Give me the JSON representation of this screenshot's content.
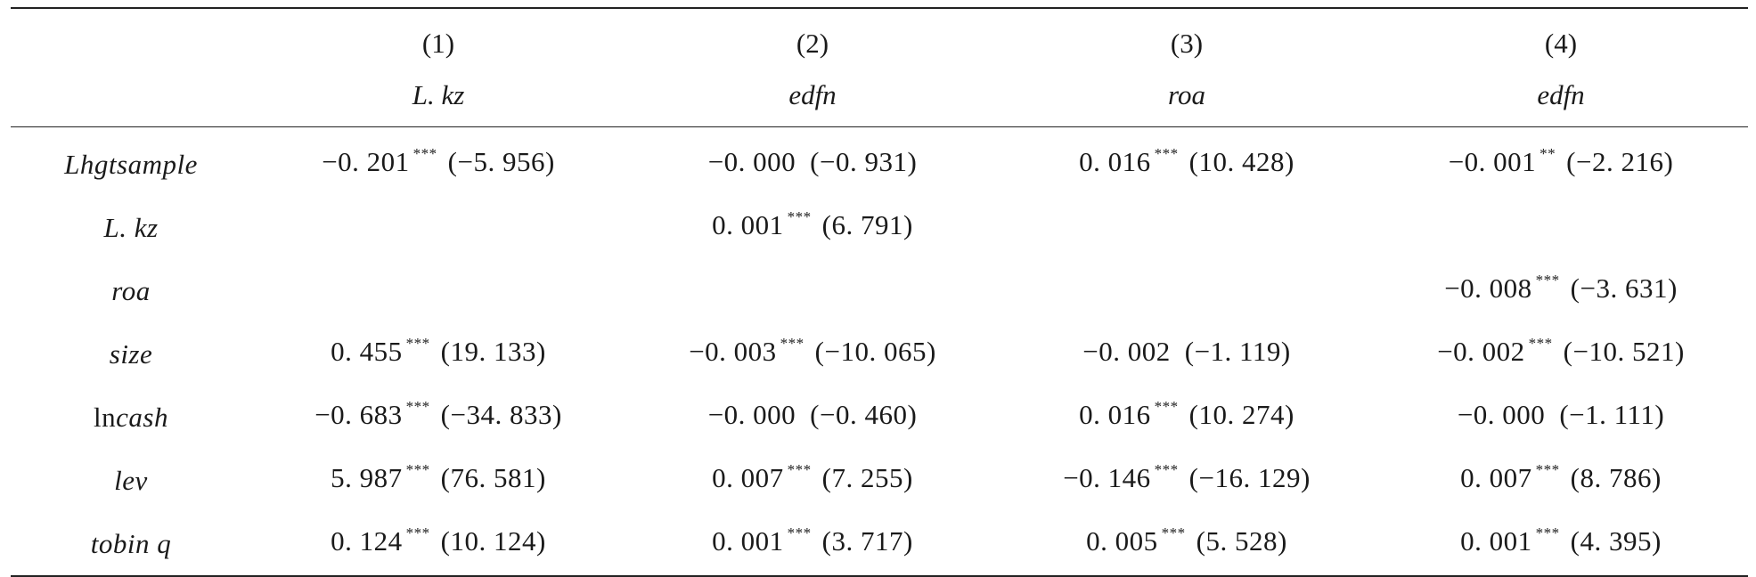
{
  "table": {
    "columns": [
      {
        "number": "(1)",
        "variable": "L. kz"
      },
      {
        "number": "(2)",
        "variable": "edfn"
      },
      {
        "number": "(3)",
        "variable": "roa"
      },
      {
        "number": "(4)",
        "variable": "edfn"
      }
    ],
    "rows": [
      {
        "label": "Lhgtsample",
        "cells": [
          {
            "coef": "−0. 201",
            "stars": "***",
            "t": "(−5. 956)"
          },
          {
            "coef": "−0. 000",
            "stars": "",
            "t": "(−0. 931)"
          },
          {
            "coef": "0. 016",
            "stars": "***",
            "t": "(10. 428)"
          },
          {
            "coef": "−0. 001",
            "stars": "**",
            "t": "(−2. 216)"
          }
        ]
      },
      {
        "label": "L. kz",
        "cells": [
          {
            "coef": "",
            "stars": "",
            "t": ""
          },
          {
            "coef": "0. 001",
            "stars": "***",
            "t": "(6. 791)"
          },
          {
            "coef": "",
            "stars": "",
            "t": ""
          },
          {
            "coef": "",
            "stars": "",
            "t": ""
          }
        ]
      },
      {
        "label": "roa",
        "cells": [
          {
            "coef": "",
            "stars": "",
            "t": ""
          },
          {
            "coef": "",
            "stars": "",
            "t": ""
          },
          {
            "coef": "",
            "stars": "",
            "t": ""
          },
          {
            "coef": "−0. 008",
            "stars": "***",
            "t": "(−3. 631)"
          }
        ]
      },
      {
        "label": "size",
        "cells": [
          {
            "coef": "0. 455",
            "stars": "***",
            "t": "(19. 133)"
          },
          {
            "coef": "−0. 003",
            "stars": "***",
            "t": "(−10. 065)"
          },
          {
            "coef": "−0. 002",
            "stars": "",
            "t": "(−1. 119)"
          },
          {
            "coef": "−0. 002",
            "stars": "***",
            "t": "(−10. 521)"
          }
        ]
      },
      {
        "label_prefix": "ln",
        "label": "cash",
        "cells": [
          {
            "coef": "−0. 683",
            "stars": "***",
            "t": "(−34. 833)"
          },
          {
            "coef": "−0. 000",
            "stars": "",
            "t": "(−0. 460)"
          },
          {
            "coef": "0. 016",
            "stars": "***",
            "t": "(10. 274)"
          },
          {
            "coef": "−0. 000",
            "stars": "",
            "t": "(−1. 111)"
          }
        ]
      },
      {
        "label": "lev",
        "cells": [
          {
            "coef": "5. 987",
            "stars": "***",
            "t": "(76. 581)"
          },
          {
            "coef": "0. 007",
            "stars": "***",
            "t": "(7. 255)"
          },
          {
            "coef": "−0. 146",
            "stars": "***",
            "t": "(−16. 129)"
          },
          {
            "coef": "0. 007",
            "stars": "***",
            "t": "(8. 786)"
          }
        ]
      },
      {
        "label": "tobin q",
        "cells": [
          {
            "coef": "0. 124",
            "stars": "***",
            "t": "(10. 124)"
          },
          {
            "coef": "0. 001",
            "stars": "***",
            "t": "(3. 717)"
          },
          {
            "coef": "0. 005",
            "stars": "***",
            "t": "(5. 528)"
          },
          {
            "coef": "0. 001",
            "stars": "***",
            "t": "(4. 395)"
          }
        ]
      }
    ]
  }
}
